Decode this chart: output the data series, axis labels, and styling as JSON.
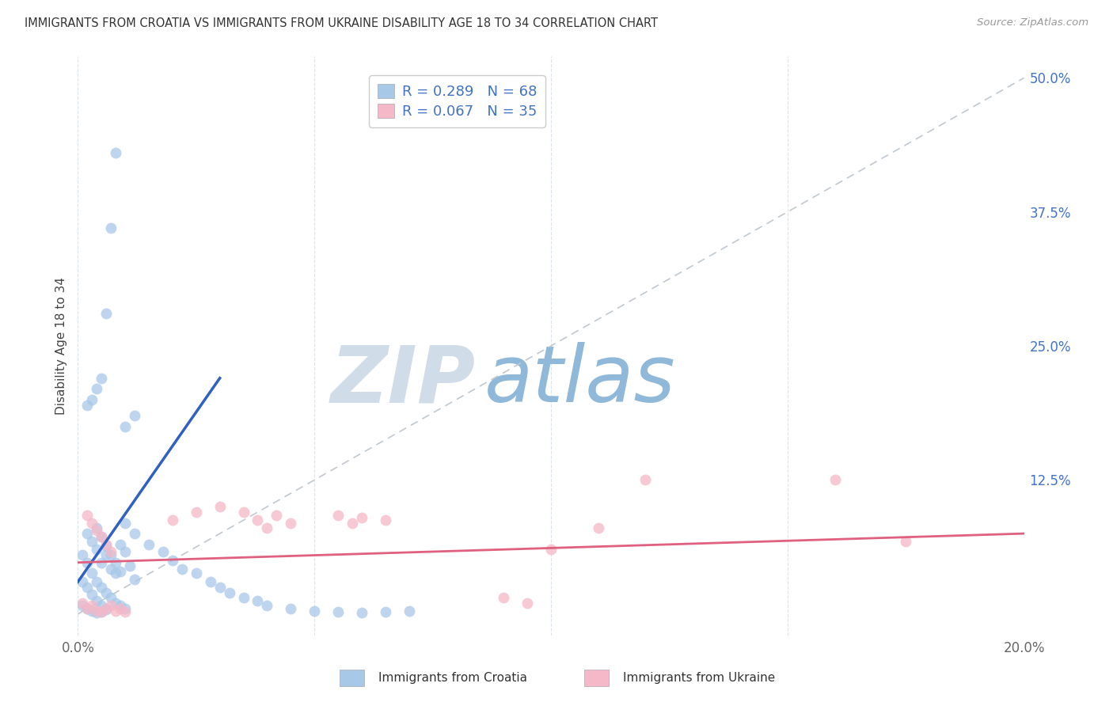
{
  "title": "IMMIGRANTS FROM CROATIA VS IMMIGRANTS FROM UKRAINE DISABILITY AGE 18 TO 34 CORRELATION CHART",
  "source": "Source: ZipAtlas.com",
  "ylabel": "Disability Age 18 to 34",
  "xlim": [
    0.0,
    0.2
  ],
  "ylim": [
    -0.02,
    0.52
  ],
  "color_croatia": "#a8c8e8",
  "color_ukraine": "#f4b8c8",
  "line_color_croatia": "#3060c0",
  "line_color_ukraine": "#e06080",
  "ref_line_color": "#c0c8d0",
  "watermark_zip": "ZIP",
  "watermark_atlas": "atlas",
  "watermark_color_zip": "#d0dce8",
  "watermark_color_atlas": "#90b8d8",
  "croatia_x": [
    0.004,
    0.005,
    0.006,
    0.007,
    0.008,
    0.009,
    0.01,
    0.011,
    0.012,
    0.002,
    0.003,
    0.004,
    0.005,
    0.006,
    0.007,
    0.008,
    0.009,
    0.001,
    0.002,
    0.003,
    0.004,
    0.005,
    0.006,
    0.007,
    0.008,
    0.009,
    0.01,
    0.001,
    0.002,
    0.003,
    0.004,
    0.005,
    0.006,
    0.001,
    0.002,
    0.003,
    0.004,
    0.005,
    0.01,
    0.012,
    0.015,
    0.018,
    0.02,
    0.022,
    0.025,
    0.028,
    0.03,
    0.032,
    0.035,
    0.038,
    0.04,
    0.045,
    0.05,
    0.055,
    0.06,
    0.065,
    0.07,
    0.002,
    0.003,
    0.004,
    0.005,
    0.006,
    0.007,
    0.008,
    0.01,
    0.012
  ],
  "croatia_y": [
    0.06,
    0.048,
    0.055,
    0.042,
    0.038,
    0.065,
    0.058,
    0.045,
    0.032,
    0.075,
    0.068,
    0.08,
    0.072,
    0.063,
    0.055,
    0.048,
    0.04,
    0.055,
    0.048,
    0.038,
    0.03,
    0.025,
    0.02,
    0.015,
    0.01,
    0.008,
    0.005,
    0.008,
    0.005,
    0.003,
    0.001,
    0.002,
    0.004,
    0.03,
    0.025,
    0.018,
    0.012,
    0.008,
    0.085,
    0.075,
    0.065,
    0.058,
    0.05,
    0.042,
    0.038,
    0.03,
    0.025,
    0.02,
    0.015,
    0.012,
    0.008,
    0.005,
    0.003,
    0.002,
    0.001,
    0.002,
    0.003,
    0.195,
    0.2,
    0.21,
    0.22,
    0.28,
    0.36,
    0.43,
    0.175,
    0.185
  ],
  "ukraine_x": [
    0.001,
    0.002,
    0.003,
    0.004,
    0.005,
    0.006,
    0.007,
    0.008,
    0.009,
    0.01,
    0.002,
    0.003,
    0.004,
    0.005,
    0.006,
    0.007,
    0.02,
    0.025,
    0.03,
    0.035,
    0.038,
    0.04,
    0.042,
    0.045,
    0.055,
    0.058,
    0.06,
    0.065,
    0.09,
    0.095,
    0.1,
    0.11,
    0.12,
    0.16,
    0.175
  ],
  "ukraine_y": [
    0.01,
    0.005,
    0.008,
    0.003,
    0.002,
    0.005,
    0.008,
    0.003,
    0.005,
    0.002,
    0.092,
    0.085,
    0.078,
    0.072,
    0.065,
    0.058,
    0.088,
    0.095,
    0.1,
    0.095,
    0.088,
    0.08,
    0.092,
    0.085,
    0.092,
    0.085,
    0.09,
    0.088,
    0.015,
    0.01,
    0.06,
    0.08,
    0.125,
    0.125,
    0.068
  ],
  "croatia_line_x": [
    0.0,
    0.03
  ],
  "croatia_line_y": [
    0.03,
    0.22
  ],
  "ukraine_line_x": [
    0.0,
    0.2
  ],
  "ukraine_line_y": [
    0.048,
    0.075
  ]
}
